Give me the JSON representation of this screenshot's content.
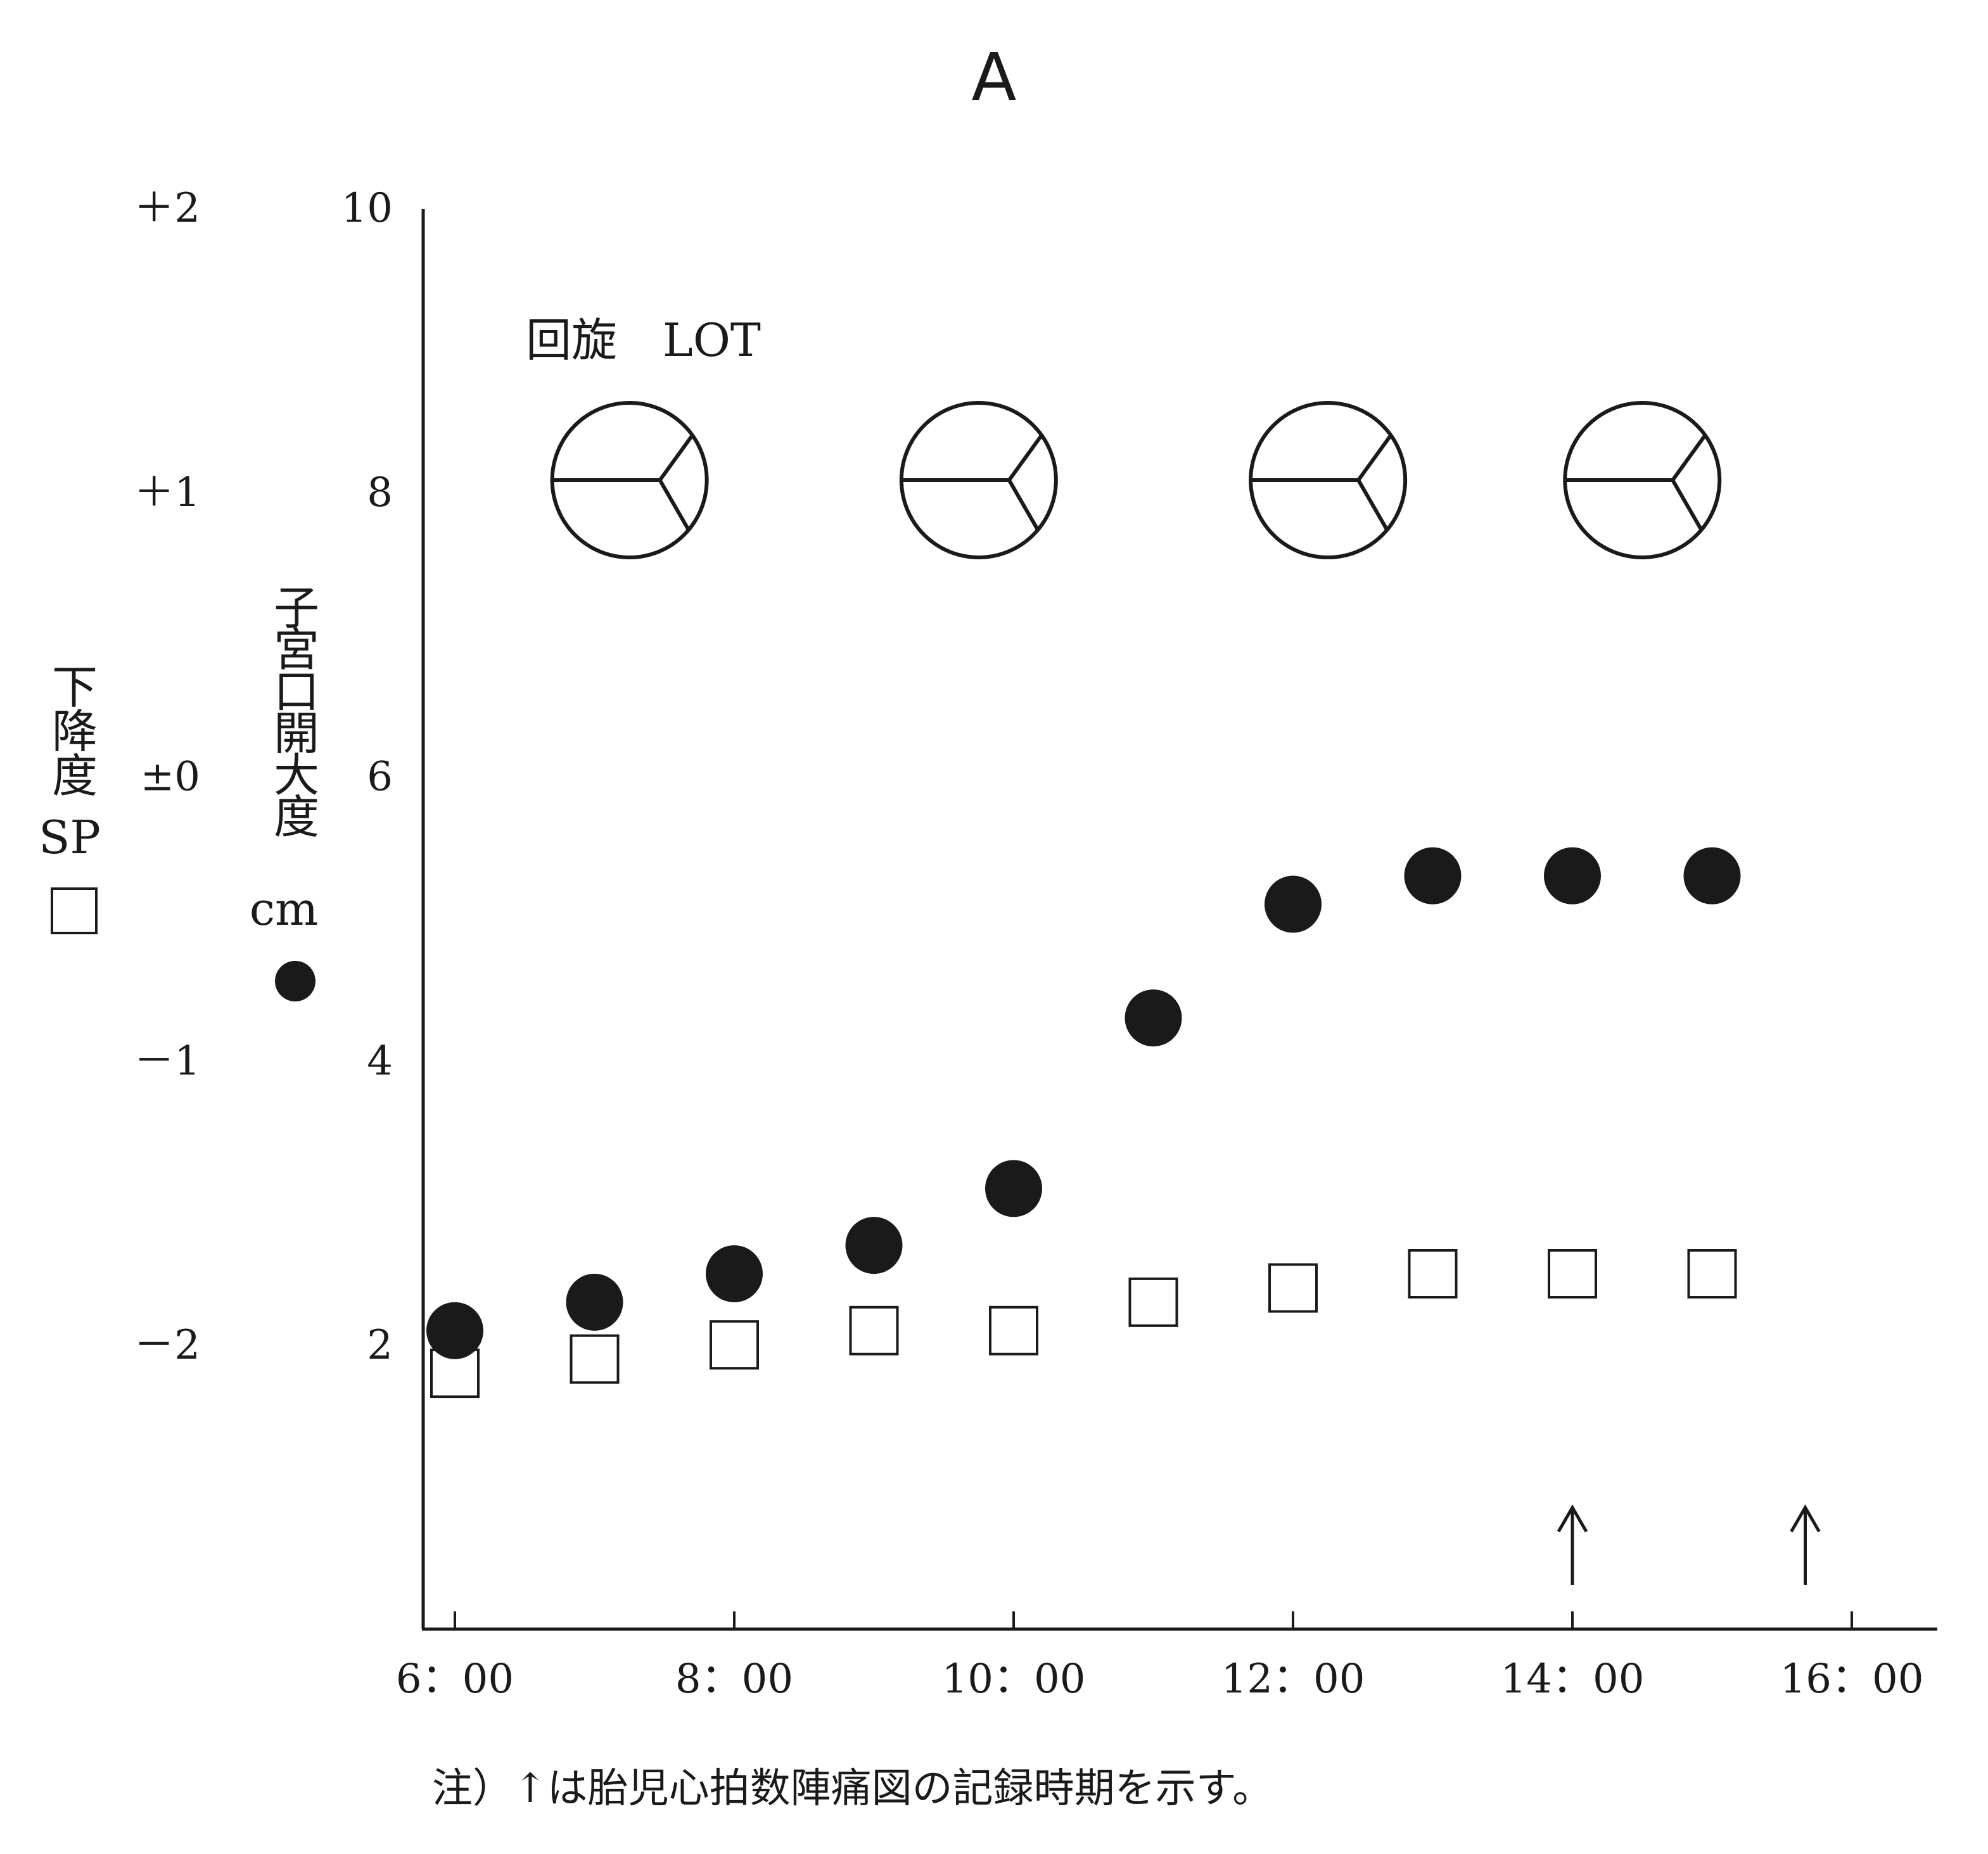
{
  "chart_data": {
    "type": "scatter",
    "title": "A",
    "x_tick_labels": [
      "6：00",
      "8：00",
      "10：00",
      "12：00",
      "14：00",
      "16：00"
    ],
    "xlim": [
      "5:45",
      "16:30"
    ],
    "y_right": {
      "label_chars": [
        "子",
        "宮",
        "口",
        "開",
        "大",
        "度"
      ],
      "unit": "cm",
      "ticks": [
        "10",
        "8",
        "6",
        "4",
        "2"
      ],
      "ylim": [
        0,
        10
      ]
    },
    "y_left": {
      "label_chars": [
        "下",
        "降",
        "度"
      ],
      "unit": "SP",
      "ticks": [
        "＋2",
        "＋1",
        "±0",
        "－1",
        "－2"
      ],
      "ylim": [
        -3,
        2
      ]
    },
    "rotation": {
      "label": "回旋　LOT",
      "times": [
        "7:15",
        "9:45",
        "12:15",
        "14:30"
      ]
    },
    "series": [
      {
        "name": "子宮口開大度",
        "marker": "filled-circle",
        "points": [
          {
            "x": "6:00",
            "y": 2.1
          },
          {
            "x": "7:00",
            "y": 2.3
          },
          {
            "x": "8:00",
            "y": 2.5
          },
          {
            "x": "9:00",
            "y": 2.7
          },
          {
            "x": "10:00",
            "y": 3.1
          },
          {
            "x": "11:00",
            "y": 4.3
          },
          {
            "x": "12:00",
            "y": 5.1
          },
          {
            "x": "13:00",
            "y": 5.3
          },
          {
            "x": "14:00",
            "y": 5.3
          },
          {
            "x": "15:00",
            "y": 5.3
          }
        ]
      },
      {
        "name": "下降度",
        "marker": "open-square",
        "points": [
          {
            "x": "6:00",
            "y": -2.1
          },
          {
            "x": "7:00",
            "y": -2.05
          },
          {
            "x": "8:00",
            "y": -2.0
          },
          {
            "x": "9:00",
            "y": -1.95
          },
          {
            "x": "10:00",
            "y": -1.95
          },
          {
            "x": "11:00",
            "y": -1.85
          },
          {
            "x": "12:00",
            "y": -1.8
          },
          {
            "x": "13:00",
            "y": -1.75
          },
          {
            "x": "14:00",
            "y": -1.75
          },
          {
            "x": "15:00",
            "y": -1.75
          }
        ]
      }
    ],
    "arrows": [
      "14:00",
      "15:40"
    ],
    "note": "注）↑は胎児心拍数陣痛図の記録時期を示す。",
    "grid": false
  }
}
